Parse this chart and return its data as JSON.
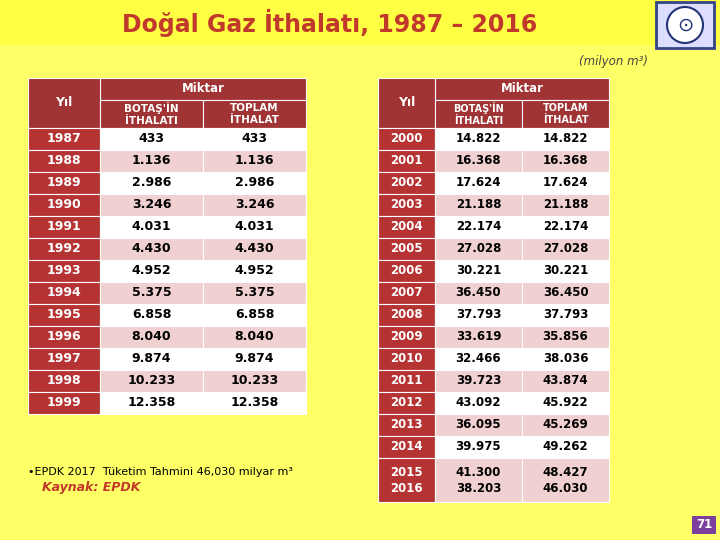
{
  "title": "Doğal Gaz İthalatı, 1987 – 2016",
  "subtitle": "(milyon m³)",
  "note": "•EPDK 2017  Tüketim Tahmini 46,030 milyar m³",
  "source": "Kaynak: EPDK",
  "page_num": "71",
  "bg_yellow": "#FFFF66",
  "title_bg": "#FFFF00",
  "header_bg": "#A03333",
  "header_text": "#FFFFFF",
  "year_bg": "#B53333",
  "year_text": "#FFFFFF",
  "data_white": "#FFFFFF",
  "data_pink": "#F0D0D0",
  "data_text": "#000000",
  "page_bg": "#7B3F9E",
  "table1_years": [
    "1987",
    "1988",
    "1989",
    "1990",
    "1991",
    "1992",
    "1993",
    "1994",
    "1995",
    "1996",
    "1997",
    "1998",
    "1999"
  ],
  "table1_botas": [
    "433",
    "1.136",
    "2.986",
    "3.246",
    "4.031",
    "4.430",
    "4.952",
    "5.375",
    "6.858",
    "8.040",
    "9.874",
    "10.233",
    "12.358"
  ],
  "table1_toplam": [
    "433",
    "1.136",
    "2.986",
    "3.246",
    "4.031",
    "4.430",
    "4.952",
    "5.375",
    "6.858",
    "8.040",
    "9.874",
    "10.233",
    "12.358"
  ],
  "table2_years": [
    "2000",
    "2001",
    "2002",
    "2003",
    "2004",
    "2005",
    "2006",
    "2007",
    "2008",
    "2009",
    "2010",
    "2011",
    "2012",
    "2013",
    "2014",
    "2015+2016"
  ],
  "table2_botas": [
    "14.822",
    "16.368",
    "17.624",
    "21.188",
    "22.174",
    "27.028",
    "30.221",
    "36.450",
    "37.793",
    "33.619",
    "32.466",
    "39.723",
    "43.092",
    "36.095",
    "39.975",
    "41.300\n38.203"
  ],
  "table2_toplam": [
    "14.822",
    "16.368",
    "17.624",
    "21.188",
    "22.174",
    "27.028",
    "30.221",
    "36.450",
    "37.793",
    "35.856",
    "38.036",
    "43.874",
    "45.922",
    "45.269",
    "49.262",
    "48.427\n46.030"
  ]
}
